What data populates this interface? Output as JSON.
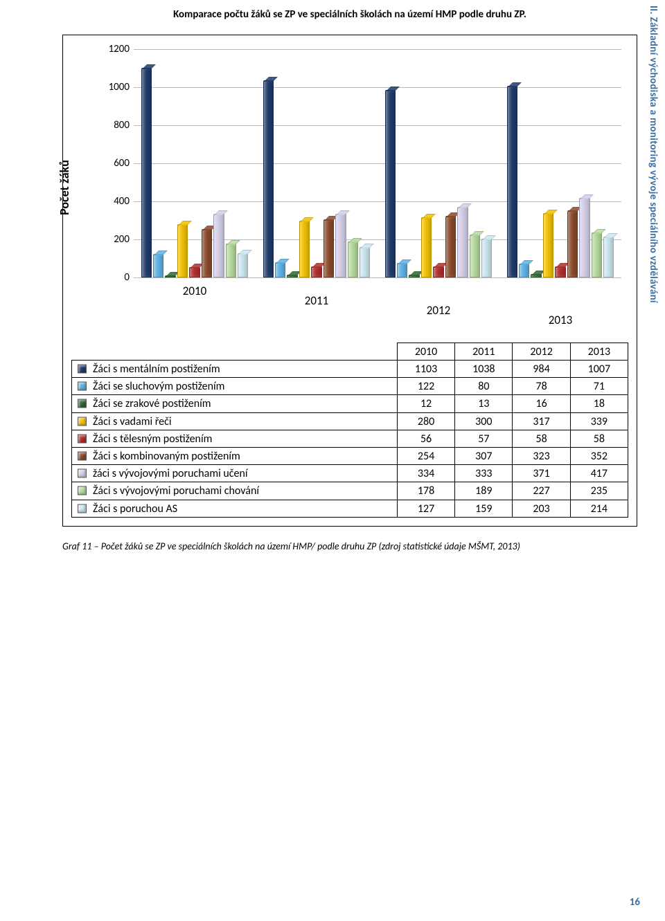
{
  "document": {
    "title": "Komparace počtu žáků se ZP ve speciálních školách na území HMP podle druhu ZP.",
    "side_heading": "II. Základní východiska a monitoring vývoje speciálního vzdělávání",
    "caption": "Graf 11 – Počet žáků se ZP ve speciálních školách na území HMP/ podle druhu ZP (zdroj statistické údaje MŠMT, 2013)",
    "page_number": "16"
  },
  "chart": {
    "type": "bar",
    "y_axis_title": "Počet žáků",
    "y_max": 1200,
    "y_tick_step": 200,
    "y_ticks": [
      "0",
      "200",
      "400",
      "600",
      "800",
      "1000",
      "1200"
    ],
    "grid_color": "#B9B9B9",
    "background_color": "#FFFFFF",
    "categories": [
      "2010",
      "2011",
      "2012",
      "2013"
    ],
    "series": [
      {
        "label": "Žáci s mentálním postižením",
        "color": "#1f3a6b",
        "values": [
          1103,
          1038,
          984,
          1007
        ]
      },
      {
        "label": "Žáci se sluchovým postižením",
        "color": "#5fb2e6",
        "values": [
          122,
          80,
          78,
          71
        ]
      },
      {
        "label": "Žáci se zrakové postižením",
        "color": "#2e662e",
        "values": [
          12,
          13,
          16,
          18
        ]
      },
      {
        "label": "Žáci s vadami řeči",
        "color": "#f2c200",
        "values": [
          280,
          300,
          317,
          339
        ]
      },
      {
        "label": "Žáci s tělesným postižením",
        "color": "#b32d2d",
        "values": [
          56,
          57,
          58,
          58
        ]
      },
      {
        "label": "Žáci s kombinovaným postižením",
        "color": "#8b4a2b",
        "values": [
          254,
          307,
          323,
          352
        ]
      },
      {
        "label": "žáci s vývojovými poruchami učení",
        "color": "#d3cfe8",
        "values": [
          334,
          333,
          371,
          417
        ]
      },
      {
        "label": "Žáci s vývojovými poruchami chování",
        "color": "#b7d9a0",
        "values": [
          178,
          189,
          227,
          235
        ]
      },
      {
        "label": "Žáci s poruchou AS",
        "color": "#cbe7f2",
        "values": [
          127,
          159,
          203,
          214
        ]
      }
    ]
  }
}
